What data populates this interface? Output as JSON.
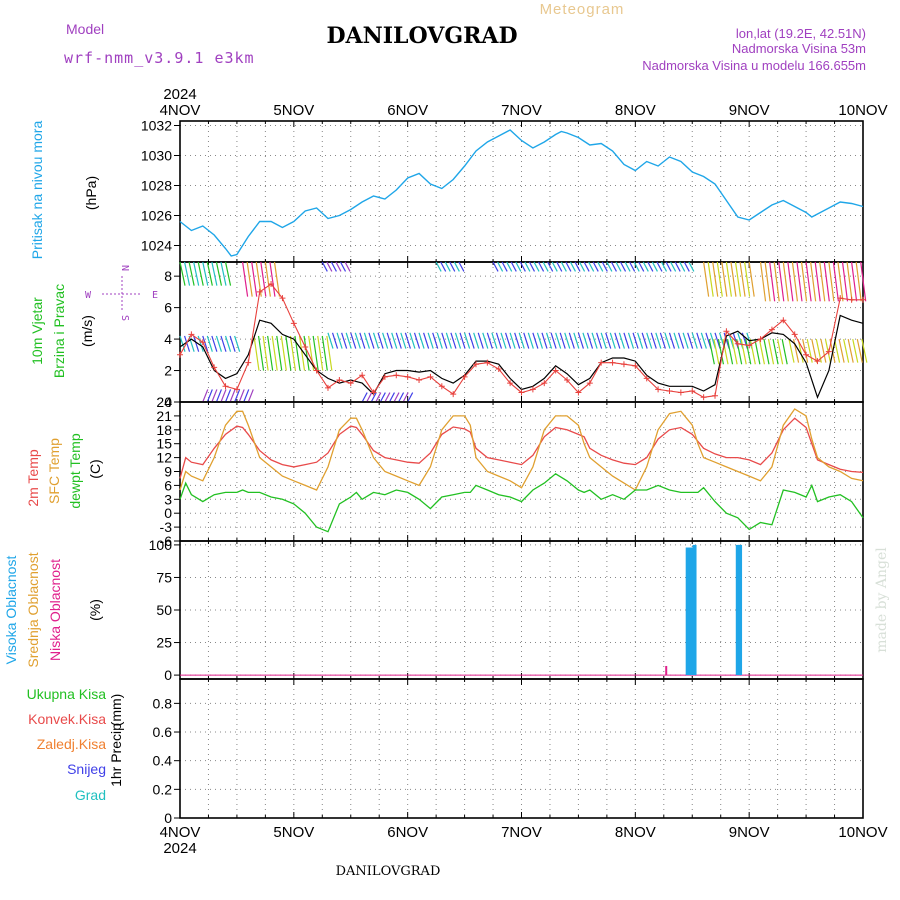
{
  "header": {
    "meteogram_label": "Meteogram",
    "title": "DANILOVGRAD",
    "model_label": "Model",
    "model_name": "wrf-nmm_v3.9.1 e3km",
    "lonlat": "lon,lat (19.2E, 42.51N)",
    "elevation": "Nadmorska Visina 53m",
    "model_elevation": "Nadmorska Visina u modelu 166.655m",
    "footer_title": "DANILOVGRAD",
    "credit": "made by Angel"
  },
  "colors": {
    "pressure": "#1fa6e8",
    "wind_speed": "#000000",
    "wind_gust": "#e8403c",
    "temp_2m": "#e84a4a",
    "temp_sfc": "#e0a030",
    "temp_dew": "#22c022",
    "cloud_high": "#1fa6e8",
    "cloud_mid": "#e0a030",
    "cloud_low": "#e0208c",
    "precip_total": "#22c022",
    "precip_conv": "#e84a4a",
    "precip_frozen": "#f08030",
    "precip_snow": "#4040e8",
    "precip_hail": "#20c0c0",
    "compass": "#a040c0",
    "title": "#000000",
    "meta": "#a040c0",
    "meteogram": "#e8c890"
  },
  "compass": {
    "n": "N",
    "s": "S",
    "e": "E",
    "w": "W"
  },
  "chart_data": [
    {
      "type": "line",
      "name": "pressure",
      "ylabel": "Pritisak na nivou mora",
      "unit": "(hPa)",
      "ylim": [
        1022.9,
        1032.3
      ],
      "yticks": [
        1024,
        1026,
        1028,
        1030,
        1032
      ],
      "x": [
        0,
        0.1,
        0.2,
        0.3,
        0.4,
        0.45,
        0.5,
        0.55,
        0.6,
        0.7,
        0.8,
        0.9,
        1.0,
        1.1,
        1.2,
        1.3,
        1.4,
        1.5,
        1.6,
        1.7,
        1.8,
        1.9,
        2.0,
        2.1,
        2.2,
        2.3,
        2.4,
        2.5,
        2.6,
        2.7,
        2.8,
        2.9,
        3.0,
        3.1,
        3.2,
        3.3,
        3.35,
        3.4,
        3.5,
        3.6,
        3.7,
        3.8,
        3.9,
        4.0,
        4.1,
        4.2,
        4.3,
        4.4,
        4.5,
        4.6,
        4.7,
        4.8,
        4.9,
        5.0,
        5.1,
        5.2,
        5.3,
        5.4,
        5.5,
        5.55,
        5.6,
        5.7,
        5.8,
        5.9,
        6.0
      ],
      "series": [
        {
          "name": "pressure",
          "values": [
            1025.6,
            1025.0,
            1025.3,
            1024.7,
            1023.8,
            1023.3,
            1023.4,
            1024.0,
            1024.6,
            1025.6,
            1025.6,
            1025.2,
            1025.6,
            1026.3,
            1026.5,
            1025.8,
            1026.0,
            1026.4,
            1026.9,
            1027.3,
            1027.1,
            1027.7,
            1028.5,
            1028.8,
            1028.1,
            1027.8,
            1028.4,
            1029.3,
            1030.3,
            1030.9,
            1031.3,
            1031.7,
            1031.0,
            1030.5,
            1030.9,
            1031.4,
            1031.6,
            1031.5,
            1031.2,
            1030.7,
            1030.8,
            1030.3,
            1029.4,
            1029.0,
            1029.6,
            1029.3,
            1029.9,
            1029.6,
            1028.9,
            1028.6,
            1028.1,
            1027.0,
            1025.9,
            1025.7,
            1026.2,
            1026.7,
            1027.0,
            1026.6,
            1026.2,
            1025.9,
            1026.1,
            1026.5,
            1026.9,
            1026.8,
            1026.6
          ]
        }
      ]
    },
    {
      "type": "line",
      "name": "wind",
      "ylabel": [
        "10m Vjetar",
        "Brzina i Pravac"
      ],
      "unit": "(m/s)",
      "ylim": [
        0,
        8.9
      ],
      "yticks": [
        0,
        2,
        4,
        6,
        8
      ],
      "x": [
        0,
        0.1,
        0.2,
        0.3,
        0.4,
        0.5,
        0.6,
        0.7,
        0.8,
        0.9,
        1.0,
        1.1,
        1.2,
        1.3,
        1.4,
        1.5,
        1.6,
        1.7,
        1.8,
        1.9,
        2.0,
        2.1,
        2.2,
        2.3,
        2.4,
        2.5,
        2.6,
        2.7,
        2.8,
        2.9,
        3.0,
        3.1,
        3.2,
        3.3,
        3.4,
        3.5,
        3.6,
        3.7,
        3.8,
        3.9,
        4.0,
        4.1,
        4.2,
        4.3,
        4.4,
        4.5,
        4.6,
        4.7,
        4.8,
        4.9,
        5.0,
        5.1,
        5.2,
        5.3,
        5.4,
        5.5,
        5.6,
        5.7,
        5.8,
        5.9,
        6.0
      ],
      "series": [
        {
          "name": "",
          "values": [
            3.5,
            4.0,
            3.5,
            2.0,
            1.5,
            1.8,
            3.0,
            5.2,
            5.0,
            4.3,
            4.0,
            3.0,
            2.0,
            1.5,
            1.2,
            1.4,
            1.2,
            0.5,
            1.8,
            2.0,
            2.0,
            1.9,
            2.0,
            1.5,
            1.2,
            1.7,
            2.6,
            2.6,
            2.4,
            1.5,
            0.8,
            1.0,
            1.5,
            2.3,
            1.8,
            1.1,
            1.5,
            2.5,
            2.8,
            2.8,
            2.6,
            1.7,
            1.2,
            1.0,
            1.0,
            1.0,
            0.7,
            1.1,
            4.2,
            4.5,
            3.9,
            4.0,
            4.4,
            4.3,
            3.7,
            2.5,
            0.3,
            2.0,
            5.5,
            5.2,
            5.0
          ]
        },
        {
          "name": "",
          "values": [
            3.0,
            4.3,
            3.8,
            2.2,
            1.0,
            0.8,
            2.5,
            7.0,
            7.5,
            6.6,
            5.0,
            3.5,
            2.0,
            0.9,
            1.4,
            1.2,
            1.7,
            0.6,
            1.6,
            1.7,
            1.6,
            1.4,
            1.6,
            1.0,
            0.5,
            1.6,
            2.4,
            2.5,
            2.1,
            1.2,
            0.6,
            0.8,
            1.2,
            2.0,
            1.4,
            0.6,
            1.2,
            2.5,
            2.5,
            2.4,
            2.3,
            1.5,
            0.8,
            0.7,
            0.6,
            0.7,
            0.3,
            0.4,
            4.5,
            3.7,
            3.6,
            4.0,
            4.6,
            5.2,
            4.3,
            3.0,
            2.6,
            3.2,
            6.6,
            6.5,
            6.5
          ]
        }
      ]
    },
    {
      "type": "line",
      "name": "temperature",
      "ylabel": [
        "2m Temp",
        "SFC Temp",
        "dewpt Temp"
      ],
      "unit": "(C)",
      "ylim": [
        -6,
        24
      ],
      "yticks": [
        -6,
        -3,
        0,
        3,
        6,
        9,
        12,
        15,
        18,
        21,
        24
      ],
      "x": [
        0,
        0.05,
        0.1,
        0.2,
        0.3,
        0.4,
        0.5,
        0.55,
        0.6,
        0.7,
        0.8,
        0.9,
        1.0,
        1.1,
        1.2,
        1.3,
        1.4,
        1.5,
        1.55,
        1.6,
        1.7,
        1.8,
        1.9,
        2.0,
        2.1,
        2.2,
        2.3,
        2.4,
        2.5,
        2.55,
        2.6,
        2.7,
        2.8,
        2.9,
        3.0,
        3.1,
        3.2,
        3.3,
        3.4,
        3.5,
        3.55,
        3.6,
        3.7,
        3.8,
        3.9,
        4.0,
        4.1,
        4.2,
        4.3,
        4.4,
        4.5,
        4.55,
        4.6,
        4.7,
        4.8,
        4.9,
        5.0,
        5.1,
        5.2,
        5.3,
        5.4,
        5.5,
        5.55,
        5.6,
        5.7,
        5.8,
        5.9,
        6.0
      ],
      "series": [
        {
          "name": "2m Temp",
          "values": [
            7.5,
            12.0,
            11.0,
            10.5,
            14.0,
            17.0,
            18.8,
            18.5,
            17.0,
            13.5,
            11.5,
            10.5,
            10.0,
            10.5,
            11.0,
            13.0,
            17.0,
            18.8,
            18.5,
            17.0,
            13.5,
            12.0,
            11.5,
            11.0,
            10.8,
            13.0,
            17.0,
            18.6,
            18.2,
            17.5,
            14.0,
            12.0,
            11.5,
            11.0,
            10.5,
            12.5,
            16.5,
            18.5,
            18.0,
            17.0,
            16.5,
            14.0,
            12.5,
            11.5,
            10.8,
            10.5,
            12.0,
            16.0,
            18.0,
            18.5,
            17.0,
            15.5,
            14.0,
            12.8,
            12.0,
            12.0,
            11.5,
            10.5,
            13.0,
            18.0,
            20.5,
            18.5,
            15.0,
            11.5,
            10.5,
            9.5,
            9.0,
            8.8
          ]
        },
        {
          "name": "SFC Temp",
          "values": [
            5.0,
            9.0,
            8.0,
            7.0,
            12.0,
            19.0,
            22.0,
            22.0,
            19.0,
            12.0,
            10.0,
            8.0,
            7.0,
            6.0,
            5.0,
            10.0,
            18.0,
            20.5,
            20.5,
            18.0,
            12.0,
            9.0,
            8.0,
            7.0,
            6.0,
            10.0,
            18.0,
            21.0,
            21.0,
            19.0,
            12.0,
            9.0,
            8.0,
            7.0,
            5.5,
            10.0,
            18.0,
            21.0,
            21.0,
            19.0,
            15.0,
            12.0,
            10.0,
            8.0,
            6.5,
            5.0,
            10.0,
            18.0,
            21.5,
            22.0,
            19.0,
            15.0,
            12.0,
            11.0,
            10.0,
            9.0,
            8.0,
            7.0,
            10.0,
            19.0,
            22.5,
            21.0,
            16.0,
            12.0,
            10.0,
            9.0,
            7.5,
            7.0
          ]
        },
        {
          "name": "dewpt Temp",
          "values": [
            3.0,
            6.5,
            4.0,
            2.5,
            4.0,
            4.5,
            4.5,
            5.0,
            4.5,
            4.5,
            3.5,
            3.0,
            2.0,
            0.0,
            -3.0,
            -4.0,
            2.0,
            3.5,
            4.5,
            3.0,
            4.5,
            4.0,
            5.0,
            4.5,
            3.0,
            1.0,
            3.5,
            4.0,
            4.5,
            4.5,
            6.0,
            5.0,
            4.0,
            3.5,
            2.5,
            5.0,
            6.5,
            8.5,
            7.0,
            5.0,
            4.5,
            5.0,
            3.0,
            4.0,
            3.0,
            5.0,
            5.0,
            6.0,
            5.0,
            4.5,
            4.5,
            4.5,
            5.5,
            2.5,
            0.0,
            -1.0,
            -3.5,
            -2.0,
            -2.5,
            5.0,
            4.5,
            3.5,
            6.0,
            2.5,
            3.5,
            4.0,
            2.5,
            -1.0
          ]
        }
      ]
    },
    {
      "type": "bar",
      "name": "clouds",
      "ylabel": [
        "Visoka Oblacnost",
        "Srednja Oblacnost",
        "Niska Oblacnost"
      ],
      "unit": "(%)",
      "ylim": [
        -3,
        103
      ],
      "yticks": [
        0,
        25,
        50,
        75,
        100
      ],
      "series": [
        {
          "name": "Visoka Oblacnost",
          "x": [
            4.46,
            4.49,
            4.52,
            4.9,
            4.92
          ],
          "values": [
            98,
            98,
            100,
            100,
            100
          ]
        },
        {
          "name": "Srednja Oblacnost",
          "x": [],
          "values": []
        },
        {
          "name": "Niska Oblacnost",
          "x": [
            4.28
          ],
          "values": [
            7
          ]
        }
      ]
    },
    {
      "type": "bar",
      "name": "precipitation",
      "ylabel": [
        "1hr Precip",
        "(mm)"
      ],
      "legend": [
        "Ukupna Kisa",
        "Konvek.Kisa",
        "Zaledj.Kisa",
        "Snijeg",
        "Grad"
      ],
      "ylim": [
        0,
        0.97
      ],
      "yticks": [
        0,
        0.2,
        0.4,
        0.6,
        0.8
      ],
      "values": []
    }
  ],
  "time_axis": {
    "year": "2024",
    "labels": [
      "4NOV",
      "5NOV",
      "6NOV",
      "7NOV",
      "8NOV",
      "9NOV",
      "10NOV"
    ]
  }
}
